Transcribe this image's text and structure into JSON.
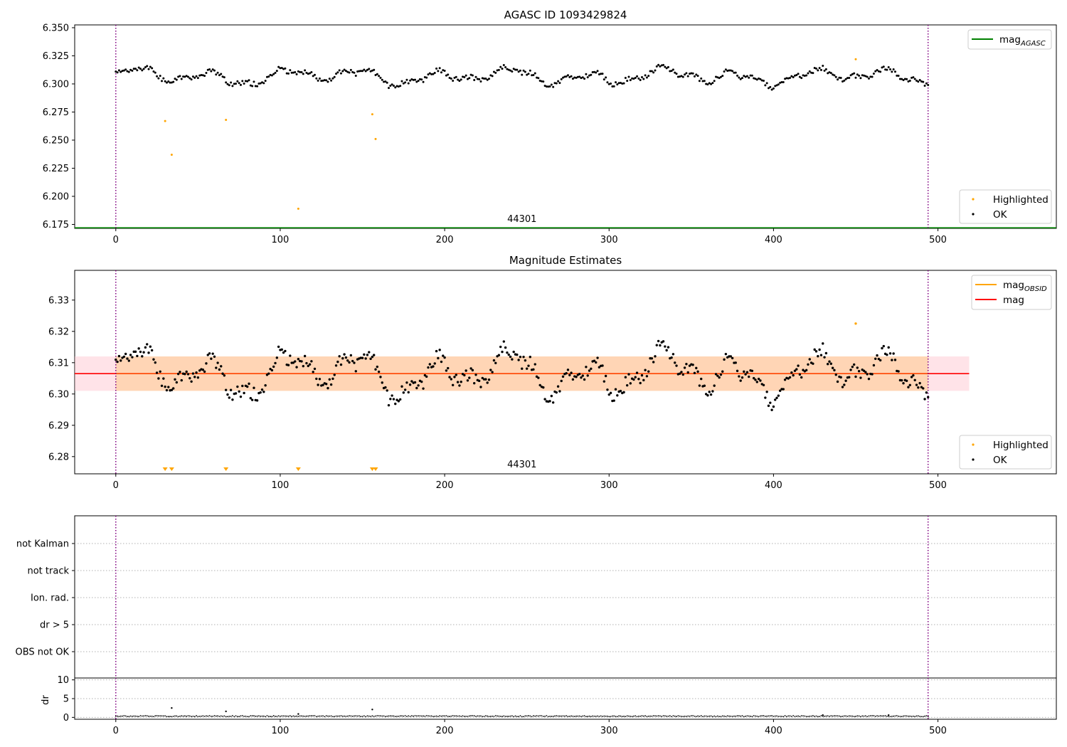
{
  "figure": {
    "colors": {
      "ok": "#000000",
      "highlighted": "#ffa500",
      "mag_agasc": "#008000",
      "mag": "#ff0000",
      "mag_obsid": "#ffa500",
      "band_orange": "#ffa500",
      "band_pink": "#ffc0cb",
      "obs_boundary": "#800080",
      "grid": "#b0b0b0"
    }
  },
  "chart_data": [
    {
      "type": "scatter",
      "title": "AGASC ID 1093429824",
      "xlim": [
        -25,
        572
      ],
      "ylim": [
        6.1715,
        6.3525
      ],
      "x_ticks": [
        0,
        100,
        200,
        300,
        400,
        500
      ],
      "y_ticks": [
        "6.175",
        "6.200",
        "6.225",
        "6.250",
        "6.275",
        "6.300",
        "6.325",
        "6.350"
      ],
      "obsid_label": "44301",
      "obsid_label_x": 247,
      "obs_boundaries": [
        0,
        494
      ],
      "mag_agasc": 6.172,
      "legend_lines": [
        {
          "label": "mag",
          "sub": "AGASC",
          "color": "mag_agasc"
        }
      ],
      "legend_points": [
        {
          "label": "Highlighted",
          "color": "highlighted"
        },
        {
          "label": "OK",
          "color": "ok"
        }
      ],
      "highlighted_points": [
        [
          30,
          6.267
        ],
        [
          34,
          6.237
        ],
        [
          67,
          6.268
        ],
        [
          111,
          6.189
        ],
        [
          156,
          6.273
        ],
        [
          158,
          6.251
        ],
        [
          450,
          6.322
        ]
      ],
      "ok_series": {
        "x_start": 0,
        "x_end": 494,
        "n": 495,
        "mean": 6.3065,
        "amplitude": 0.0115,
        "seed": 1093429824
      }
    },
    {
      "type": "scatter",
      "title": "Magnitude Estimates",
      "xlim": [
        -25,
        572
      ],
      "ylim": [
        6.2745,
        6.3395
      ],
      "x_ticks": [
        0,
        100,
        200,
        300,
        400,
        500
      ],
      "y_ticks": [
        "6.28",
        "6.29",
        "6.30",
        "6.31",
        "6.32",
        "6.33"
      ],
      "obsid_label": "44301",
      "obsid_label_x": 247,
      "obs_boundaries": [
        0,
        494
      ],
      "mag": 6.3065,
      "mag_band": [
        6.301,
        6.312
      ],
      "band_x_end": 519,
      "legend_lines": [
        {
          "label": "mag",
          "sub": "OBSID",
          "color": "mag_obsid"
        },
        {
          "label": "mag",
          "sub": "",
          "color": "mag"
        }
      ],
      "legend_points": [
        {
          "label": "Highlighted",
          "color": "highlighted"
        },
        {
          "label": "OK",
          "color": "ok"
        }
      ],
      "highlighted_offscale_x": [
        30,
        34,
        67,
        111,
        156,
        158
      ],
      "highlighted_points": [
        [
          450,
          6.3225
        ]
      ]
    },
    {
      "type": "scatter",
      "title": "",
      "xlim": [
        -25,
        572
      ],
      "categories": [
        "not Kalman",
        "not track",
        "Ion. rad.",
        "dr > 5",
        "OBS not OK"
      ],
      "obs_boundaries": [
        0,
        494
      ],
      "points": []
    },
    {
      "type": "scatter",
      "title": "",
      "xlim": [
        -25,
        572
      ],
      "ylim": [
        -0.5,
        10.5
      ],
      "x_ticks": [
        0,
        100,
        200,
        300,
        400,
        500
      ],
      "y_ticks": [
        "0",
        "5",
        "10"
      ],
      "ylabel": "dr",
      "obs_boundaries": [
        0,
        494
      ],
      "spikes": [
        [
          34,
          2.5
        ],
        [
          67,
          1.6
        ],
        [
          111,
          0.9
        ],
        [
          156,
          2.1
        ],
        [
          430,
          0.6
        ],
        [
          470,
          0.6
        ]
      ],
      "baseline": 0.2
    }
  ]
}
